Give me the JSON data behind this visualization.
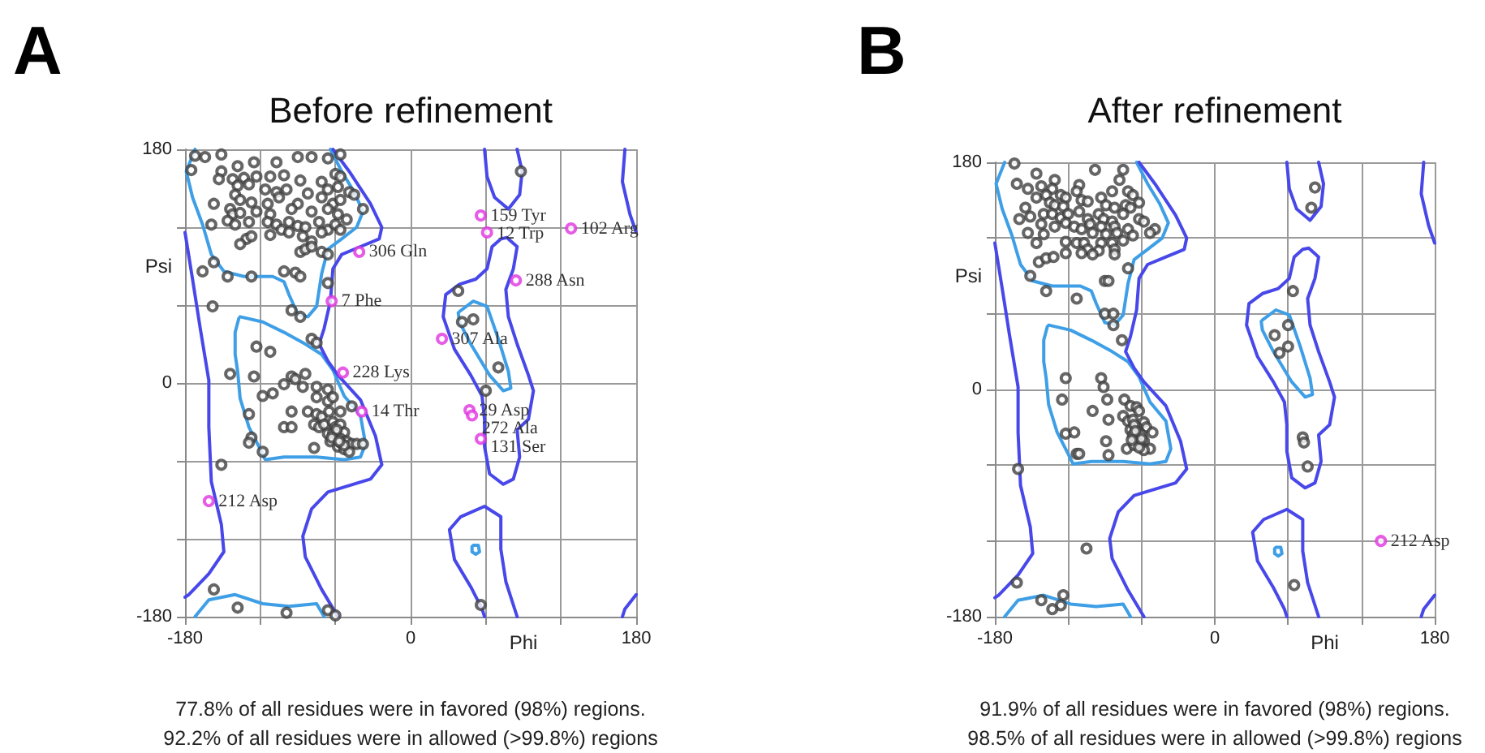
{
  "chart_data": [
    {
      "type": "scatter",
      "title": "Before refinement",
      "xlabel": "Phi",
      "ylabel": "Psi",
      "xlim": [
        -180,
        180
      ],
      "ylim": [
        -180,
        180
      ],
      "xticks": [
        -180,
        {
          "value": -120,
          "label": null
        },
        {
          "value": -60,
          "label": null
        },
        0,
        {
          "value": 60,
          "label": null
        },
        {
          "value": 120,
          "label": null
        },
        180
      ],
      "yticks": [
        -180,
        {
          "value": -120,
          "label": null
        },
        {
          "value": -60,
          "label": null
        },
        0,
        {
          "value": 60,
          "label": null
        },
        {
          "value": 120,
          "label": null
        },
        180
      ],
      "grid": true,
      "marker": "circle",
      "series": [
        {
          "type": "line",
          "marker": "none",
          "color": "#3f9fe6",
          "x": [
            -172,
            -179,
            -174,
            -166,
            -159,
            -149,
            -133,
            -110,
            -101,
            -97,
            -90,
            -82,
            -75,
            -71,
            -66,
            -55,
            -43,
            -38,
            -45,
            -55,
            -64
          ],
          "values": [
            180,
            163,
            143,
            122,
            99,
            86,
            82,
            82,
            78,
            68,
            53,
            51,
            59,
            84,
            103,
            111,
            120,
            132,
            147,
            163,
            180
          ]
        },
        {
          "type": "line",
          "marker": "none",
          "color": "#3f9fe6",
          "x": [
            -172,
            -161,
            -140,
            -118,
            -97,
            -75,
            -69
          ],
          "values": [
            -180,
            -167,
            -163,
            -170,
            -172,
            -170,
            -180
          ]
        },
        {
          "type": "line",
          "marker": "none",
          "color": "#3f9fe6",
          "x": [
            -136,
            -118,
            -101,
            -84,
            -71,
            -62,
            -53,
            -40,
            -36,
            -40,
            -53,
            -75,
            -101,
            -116,
            -120,
            -129,
            -136,
            -138,
            -140,
            -140,
            -137
          ],
          "values": [
            51,
            47,
            39,
            30,
            22,
            10,
            -10,
            -25,
            -47,
            -57,
            -59,
            -57,
            -57,
            -59,
            -51,
            -34,
            -12,
            9,
            22,
            39,
            50
          ]
        },
        {
          "type": "line",
          "marker": "none",
          "color": "#4848ea",
          "x": [
            -180,
            -174,
            -168,
            -161,
            -161,
            -159,
            -151,
            -149,
            -161,
            -177,
            -180
          ],
          "values": [
            116,
            80,
            43,
            2,
            -34,
            -76,
            -109,
            -130,
            -147,
            -163,
            -165
          ]
        },
        {
          "type": "line",
          "marker": "none",
          "color": "#4848ea",
          "x": [
            -62,
            -49,
            -32,
            -23,
            -25,
            -40,
            -55,
            -62,
            -64,
            -69,
            -73,
            -66,
            -58,
            -40,
            -28,
            -23,
            -32,
            -66,
            -79,
            -86,
            -84,
            -71,
            -58
          ],
          "values": [
            180,
            163,
            138,
            120,
            111,
            105,
            99,
            88,
            63,
            42,
            30,
            17,
            6,
            -13,
            -41,
            -63,
            -74,
            -84,
            -97,
            -118,
            -134,
            -159,
            -180
          ]
        },
        {
          "type": "line",
          "marker": "none",
          "color": "#4848ea",
          "x": [
            171,
            169,
            175,
            180
          ],
          "values": [
            180,
            155,
            130,
            116
          ]
        },
        {
          "type": "line",
          "marker": "none",
          "color": "#4848ea",
          "x": [
            180,
            171,
            169
          ],
          "values": [
            -163,
            -174,
            -180
          ]
        },
        {
          "type": "line",
          "marker": "none",
          "color": "#4848ea",
          "x": [
            59,
            61,
            67,
            78,
            87,
            89,
            85
          ],
          "values": [
            180,
            159,
            143,
            134,
            145,
            163,
            180
          ]
        },
        {
          "type": "line",
          "marker": "none",
          "color": "#4848ea",
          "x": [
            59,
            57,
            48,
            35,
            31,
            40,
            59,
            72,
            72,
            76,
            85
          ],
          "values": [
            -180,
            -174,
            -157,
            -136,
            -113,
            -103,
            -95,
            -103,
            -128,
            -153,
            -180
          ]
        },
        {
          "type": "line",
          "marker": "none",
          "color": "#4848ea",
          "x": [
            78,
            85,
            82,
            76,
            78,
            85,
            94,
            98,
            94,
            85,
            87,
            82,
            74,
            63,
            59,
            59,
            57,
            48,
            35,
            26,
            28,
            39,
            52,
            61,
            65,
            72,
            77
          ],
          "values": [
            111,
            105,
            88,
            72,
            51,
            30,
            6,
            -6,
            -28,
            -36,
            -57,
            -74,
            -78,
            -70,
            -49,
            -28,
            -10,
            6,
            26,
            51,
            68,
            76,
            80,
            88,
            105,
            111,
            112
          ]
        },
        {
          "type": "line",
          "marker": "none",
          "color": "#3f9fe6",
          "x": [
            39,
            50,
            61,
            70,
            78,
            80,
            74,
            63,
            48,
            39,
            38
          ],
          "values": [
            55,
            63,
            59,
            34,
            9,
            -4,
            -6,
            6,
            30,
            47,
            54
          ]
        },
        {
          "type": "line",
          "marker": "none",
          "color": "#3f9fe6",
          "x": [
            50,
            54,
            55,
            52,
            49,
            49
          ],
          "values": [
            -125,
            -125,
            -130,
            -132,
            -130,
            -126
          ]
        },
        {
          "color": "#404040",
          "x": [
            -172,
            -164,
            -151,
            -138,
            -125,
            -107,
            -90,
            -79,
            -66,
            -56,
            -175,
            -151,
            -142,
            -133,
            -123,
            -112,
            -101,
            -88,
            -71,
            -60,
            -56,
            -153,
            -138,
            -129,
            -116,
            -107,
            -99,
            -82,
            -66,
            -58,
            -49,
            -157,
            -140,
            -136,
            -127,
            -114,
            -105,
            -90,
            -71,
            -62,
            -56,
            -45,
            -144,
            -142,
            -136,
            -123,
            -112,
            -95,
            -79,
            -66,
            -58,
            -51,
            -38,
            -159,
            -146,
            -140,
            -129,
            -114,
            -107,
            -97,
            -90,
            -84,
            -73,
            -66,
            -60,
            -131,
            -127,
            -112,
            -103,
            -97,
            -86,
            -79,
            -71,
            -56,
            -136,
            -88,
            -84,
            -79,
            -71,
            -66,
            -166,
            -157,
            -146,
            -127,
            -101,
            -92,
            -88,
            -66,
            -158,
            -95,
            -88,
            -79,
            -75,
            -123,
            -112,
            -144,
            -125,
            -95,
            -84,
            -101,
            -92,
            -86,
            -75,
            -66,
            -75,
            -66,
            -62,
            -118,
            -110,
            -129,
            -95,
            -82,
            -75,
            -71,
            -65,
            -56,
            -47,
            -101,
            -95,
            -77,
            -73,
            -69,
            -62,
            -60,
            -56,
            -66,
            -62,
            -58,
            -53,
            -60,
            -56,
            -64,
            -51,
            -47,
            -43,
            -58,
            -53,
            -49,
            -38,
            -77,
            -127,
            -129,
            -118,
            -56,
            -59,
            -63,
            -53,
            -57,
            -151,
            -157,
            -138,
            -99,
            -66,
            -60,
            88,
            38,
            41,
            50,
            70,
            60,
            56
          ],
          "values": [
            175,
            174,
            176,
            167,
            170,
            170,
            174,
            174,
            173,
            176,
            164,
            163,
            157,
            158,
            159,
            159,
            160,
            156,
            155,
            161,
            159,
            157,
            152,
            153,
            149,
            147,
            149,
            146,
            149,
            151,
            147,
            138,
            145,
            141,
            139,
            138,
            143,
            138,
            143,
            138,
            141,
            145,
            134,
            130,
            131,
            132,
            130,
            134,
            132,
            134,
            130,
            126,
            134,
            122,
            125,
            122,
            124,
            124,
            122,
            124,
            121,
            120,
            124,
            118,
            122,
            111,
            113,
            114,
            118,
            116,
            113,
            109,
            116,
            118,
            107,
            101,
            103,
            105,
            101,
            99,
            86,
            93,
            82,
            82,
            86,
            85,
            82,
            77,
            59,
            56,
            51,
            34,
            31,
            28,
            24,
            7,
            5,
            5,
            7,
            -1,
            3,
            -3,
            -3,
            -5,
            -11,
            -14,
            -11,
            -10,
            -8,
            -24,
            -22,
            -22,
            -24,
            -26,
            -22,
            -22,
            -18,
            -34,
            -34,
            -32,
            -34,
            -32,
            -30,
            -34,
            -32,
            -39,
            -39,
            -39,
            -38,
            -43,
            -43,
            -45,
            -45,
            -47,
            -47,
            -49,
            -51,
            -53,
            -47,
            -50,
            -42,
            -46,
            -53,
            -46,
            -36,
            -42,
            -48,
            -45,
            -63,
            -159,
            -173,
            -177,
            -175,
            -179,
            163,
            71,
            47,
            49,
            12,
            -6,
            -171
          ]
        },
        {
          "color": "#e033e0",
          "x": [
            56,
            128,
            61,
            -41,
            84,
            -63,
            25,
            -54,
            -39,
            47,
            49,
            56,
            -161
          ],
          "values": [
            129,
            119,
            116,
            101,
            79,
            63,
            34,
            8,
            -22,
            -21,
            -25,
            -43,
            -91
          ]
        }
      ],
      "annotations": [
        "A",
        {
          "text": "159 Tyr",
          "x": 56,
          "y": 129
        },
        {
          "text": "102 Arg",
          "x": 128,
          "y": 119
        },
        {
          "text": "12 Trp",
          "x": 61,
          "y": 116
        },
        {
          "text": "306 Gln",
          "x": -41,
          "y": 101
        },
        {
          "text": "288 Asn",
          "x": 84,
          "y": 79
        },
        {
          "text": "7 Phe",
          "x": -63,
          "y": 63
        },
        {
          "text": "307 Ala",
          "x": 25,
          "y": 34
        },
        {
          "text": "228 Lys",
          "x": -54,
          "y": 8
        },
        {
          "text": "14 Thr",
          "x": -39,
          "y": -22
        },
        {
          "text": "29 Asp",
          "x": 47,
          "y": -21
        },
        {
          "text": "272 Ala",
          "x": 49,
          "y": -25
        },
        {
          "text": "131 Ser",
          "x": 56,
          "y": -43
        },
        {
          "text": "212 Asp",
          "x": -161,
          "y": -91
        },
        "77.8% of all residues were in favored (98%) regions.",
        "92.2% of all residues were in allowed (>99.8%) regions"
      ]
    },
    {
      "type": "scatter",
      "title": "After refinement",
      "xlabel": "Phi",
      "ylabel": "Psi",
      "xlim": [
        -180,
        180
      ],
      "ylim": [
        -180,
        180
      ],
      "xticks": [
        -180,
        {
          "value": -120,
          "label": null
        },
        {
          "value": -60,
          "label": null
        },
        0,
        {
          "value": 60,
          "label": null
        },
        {
          "value": 120,
          "label": null
        },
        180
      ],
      "yticks": [
        -180,
        {
          "value": -120,
          "label": null
        },
        {
          "value": -60,
          "label": null
        },
        0,
        {
          "value": 60,
          "label": null
        },
        {
          "value": 120,
          "label": null
        },
        180
      ],
      "grid": true,
      "marker": "circle",
      "series": [
        {
          "type": "line",
          "marker": "none",
          "color": "#3f9fe6",
          "x": [
            -172,
            -179,
            -174,
            -166,
            -159,
            -149,
            -133,
            -110,
            -101,
            -97,
            -90,
            -82,
            -75,
            -71,
            -66,
            -55,
            -43,
            -38,
            -45,
            -55,
            -64
          ],
          "values": [
            180,
            163,
            143,
            122,
            99,
            86,
            82,
            82,
            78,
            68,
            53,
            51,
            59,
            84,
            103,
            111,
            120,
            132,
            147,
            163,
            180
          ]
        },
        {
          "type": "line",
          "marker": "none",
          "color": "#3f9fe6",
          "x": [
            -172,
            -161,
            -140,
            -118,
            -97,
            -75,
            -69
          ],
          "values": [
            -180,
            -167,
            -163,
            -170,
            -172,
            -170,
            -180
          ]
        },
        {
          "type": "line",
          "marker": "none",
          "color": "#3f9fe6",
          "x": [
            -136,
            -118,
            -101,
            -84,
            -71,
            -62,
            -53,
            -40,
            -36,
            -40,
            -53,
            -75,
            -101,
            -116,
            -120,
            -129,
            -136,
            -138,
            -140,
            -140,
            -137
          ],
          "values": [
            51,
            47,
            39,
            30,
            22,
            10,
            -10,
            -25,
            -47,
            -57,
            -59,
            -57,
            -57,
            -59,
            -51,
            -34,
            -12,
            9,
            22,
            39,
            50
          ]
        },
        {
          "type": "line",
          "marker": "none",
          "color": "#4848ea",
          "x": [
            -180,
            -174,
            -168,
            -161,
            -161,
            -159,
            -151,
            -149,
            -161,
            -177,
            -180
          ],
          "values": [
            116,
            80,
            43,
            2,
            -34,
            -76,
            -109,
            -130,
            -147,
            -163,
            -165
          ]
        },
        {
          "type": "line",
          "marker": "none",
          "color": "#4848ea",
          "x": [
            -62,
            -49,
            -32,
            -23,
            -25,
            -40,
            -55,
            -62,
            -64,
            -69,
            -73,
            -66,
            -58,
            -40,
            -28,
            -23,
            -32,
            -66,
            -79,
            -86,
            -84,
            -71,
            -58
          ],
          "values": [
            180,
            163,
            138,
            120,
            111,
            105,
            99,
            88,
            63,
            42,
            30,
            17,
            6,
            -13,
            -41,
            -63,
            -74,
            -84,
            -97,
            -118,
            -134,
            -159,
            -180
          ]
        },
        {
          "type": "line",
          "marker": "none",
          "color": "#4848ea",
          "x": [
            171,
            169,
            175,
            180
          ],
          "values": [
            180,
            155,
            130,
            116
          ]
        },
        {
          "type": "line",
          "marker": "none",
          "color": "#4848ea",
          "x": [
            180,
            171,
            169
          ],
          "values": [
            -163,
            -174,
            -180
          ]
        },
        {
          "type": "line",
          "marker": "none",
          "color": "#4848ea",
          "x": [
            59,
            61,
            67,
            78,
            87,
            89,
            85
          ],
          "values": [
            180,
            159,
            143,
            134,
            145,
            163,
            180
          ]
        },
        {
          "type": "line",
          "marker": "none",
          "color": "#4848ea",
          "x": [
            59,
            57,
            48,
            35,
            31,
            40,
            59,
            72,
            72,
            76,
            85
          ],
          "values": [
            -180,
            -174,
            -157,
            -136,
            -113,
            -103,
            -95,
            -103,
            -128,
            -153,
            -180
          ]
        },
        {
          "type": "line",
          "marker": "none",
          "color": "#4848ea",
          "x": [
            78,
            85,
            82,
            76,
            78,
            85,
            94,
            98,
            94,
            85,
            87,
            82,
            74,
            63,
            59,
            59,
            57,
            48,
            35,
            26,
            28,
            39,
            52,
            61,
            65,
            72,
            77
          ],
          "values": [
            111,
            105,
            88,
            72,
            51,
            30,
            6,
            -6,
            -28,
            -36,
            -57,
            -74,
            -78,
            -70,
            -49,
            -28,
            -10,
            6,
            26,
            51,
            68,
            76,
            80,
            88,
            105,
            111,
            112
          ]
        },
        {
          "type": "line",
          "marker": "none",
          "color": "#3f9fe6",
          "x": [
            39,
            50,
            61,
            70,
            78,
            80,
            74,
            63,
            48,
            39,
            38
          ],
          "values": [
            55,
            63,
            59,
            34,
            9,
            -4,
            -6,
            6,
            30,
            47,
            54
          ]
        },
        {
          "type": "line",
          "marker": "none",
          "color": "#3f9fe6",
          "x": [
            50,
            54,
            55,
            52,
            49,
            49
          ],
          "values": [
            -125,
            -125,
            -130,
            -132,
            -130,
            -126
          ]
        },
        {
          "color": "#404040",
          "x": [
            -164,
            -146,
            -131,
            -111,
            -98,
            -75,
            -78,
            -71,
            -162,
            -153,
            -142,
            -133,
            -146,
            -138,
            -126,
            -122,
            -135,
            -131,
            -124,
            -113,
            -109,
            -104,
            -84,
            -67,
            -62,
            -93,
            -89,
            -82,
            -73,
            -69,
            -155,
            -160,
            -151,
            -140,
            -133,
            -126,
            -120,
            -111,
            -104,
            -95,
            -91,
            -84,
            -75,
            -62,
            -58,
            -142,
            -131,
            -122,
            -115,
            -109,
            -102,
            -93,
            -82,
            -71,
            -49,
            -153,
            -140,
            -100,
            -89,
            -80,
            -67,
            -53,
            -146,
            -122,
            -113,
            -107,
            -93,
            -84,
            -75,
            -104,
            -95,
            -109,
            -100,
            -144,
            -138,
            -132,
            -122,
            -82,
            -82,
            -71,
            -151,
            -90,
            -87,
            -138,
            -113,
            -90,
            -83,
            -83,
            -76,
            -122,
            -93,
            -91,
            -125,
            -88,
            -74,
            -69,
            -64,
            -62,
            -100,
            -87,
            -75,
            -71,
            -67,
            -58,
            -56,
            -51,
            -122,
            -115,
            -69,
            -64,
            -62,
            -67,
            -60,
            -58,
            -61,
            -64,
            -53,
            -58,
            -89,
            -72,
            -113,
            -111,
            -87,
            -66,
            -66,
            -62,
            -60,
            -65,
            -68,
            -161,
            -105,
            -162,
            -142,
            -124,
            -126,
            -133,
            82,
            79,
            64,
            60,
            49,
            60,
            53,
            72,
            73,
            76,
            65
          ],
          "values": [
            179,
            171,
            166,
            162,
            174,
            174,
            166,
            157,
            163,
            159,
            161,
            159,
            152,
            154,
            154,
            152,
            148,
            146,
            145,
            157,
            150,
            149,
            157,
            154,
            148,
            152,
            146,
            144,
            146,
            144,
            144,
            135,
            137,
            139,
            139,
            136,
            139,
            141,
            135,
            139,
            135,
            133,
            139,
            135,
            133,
            131,
            129,
            132,
            129,
            127,
            131,
            129,
            129,
            127,
            127,
            124,
            123,
            124,
            123,
            124,
            122,
            124,
            116,
            117,
            116,
            116,
            116,
            116,
            118,
            111,
            110,
            108,
            107,
            101,
            104,
            105,
            108,
            111,
            107,
            96,
            90,
            86,
            86,
            78,
            72,
            60,
            60,
            51,
            39,
            9,
            9,
            2,
            -8,
            -8,
            -8,
            -13,
            -14,
            -17,
            -17,
            -24,
            -21,
            -25,
            -24,
            -26,
            -30,
            -34,
            -35,
            -34,
            -32,
            -30,
            -34,
            -36,
            -36,
            -41,
            -43,
            -42,
            -47,
            -48,
            -41,
            -47,
            -51,
            -51,
            -52,
            -28,
            -44,
            -46,
            -39,
            -33,
            -40,
            -63,
            -126,
            -153,
            -167,
            -163,
            -171,
            -174,
            160,
            144,
            78,
            51,
            43,
            34,
            29,
            -38,
            -42,
            -61,
            -155
          ]
        },
        {
          "color": "#e033e0",
          "x": [
            136
          ],
          "values": [
            -120
          ]
        }
      ],
      "annotations": [
        "B",
        {
          "text": "212 Asp",
          "x": 136,
          "y": -120
        },
        "91.9% of all residues were in favored (98%) regions.",
        "98.5% of all residues were in allowed (>99.8%) regions"
      ]
    }
  ]
}
